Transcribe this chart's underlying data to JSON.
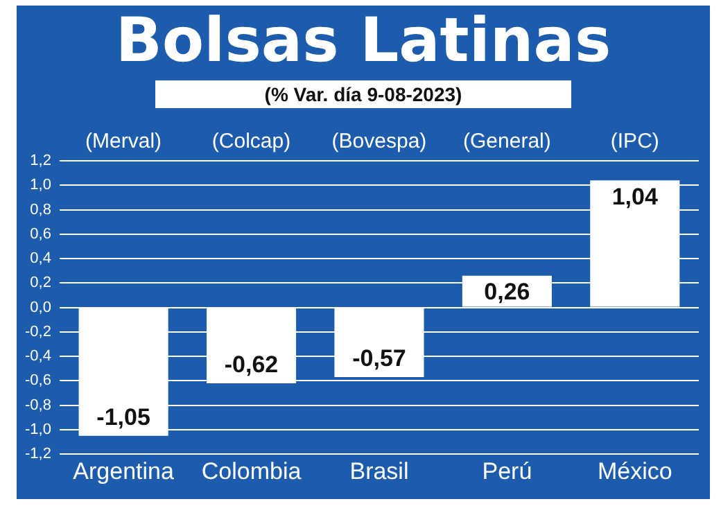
{
  "chart_data": {
    "type": "bar",
    "title": "Bolsas Latinas",
    "subtitle": "(% Var. día 9-08-2023)",
    "categories": [
      "Argentina",
      "Colombia",
      "Brasil",
      "Perú",
      "México"
    ],
    "series": [
      {
        "color": "#ffffff",
        "values": [
          -1.05,
          -0.62,
          -0.57,
          0.26,
          1.04
        ],
        "value_labels": [
          "-1,05",
          "-0,62",
          "-0,57",
          "0,26",
          "1,04"
        ]
      }
    ],
    "annotations": [
      "(Merval)",
      "(Colcap)",
      "(Bovespa)",
      "(General)",
      "(IPC)"
    ],
    "ylim": [
      -1.2,
      1.2
    ],
    "yticks": [
      {
        "value": -1.2,
        "label": "-1,2"
      },
      {
        "value": -1.0,
        "label": "-1,0"
      },
      {
        "value": -0.8,
        "label": "-0,8"
      },
      {
        "value": -0.6,
        "label": "-0,6"
      },
      {
        "value": -0.4,
        "label": "-0,4"
      },
      {
        "value": -0.2,
        "label": "-0,2"
      },
      {
        "value": 0,
        "label": "0,0"
      },
      {
        "value": 0.2,
        "label": "0,2"
      },
      {
        "value": 0.4,
        "label": "0,4"
      },
      {
        "value": 0.6,
        "label": "0,6"
      },
      {
        "value": 0.8,
        "label": "0,8"
      },
      {
        "value": 1.0,
        "label": "1,0"
      },
      {
        "value": 1.2,
        "label": "1,2"
      }
    ],
    "grid": "y",
    "legend": false
  }
}
